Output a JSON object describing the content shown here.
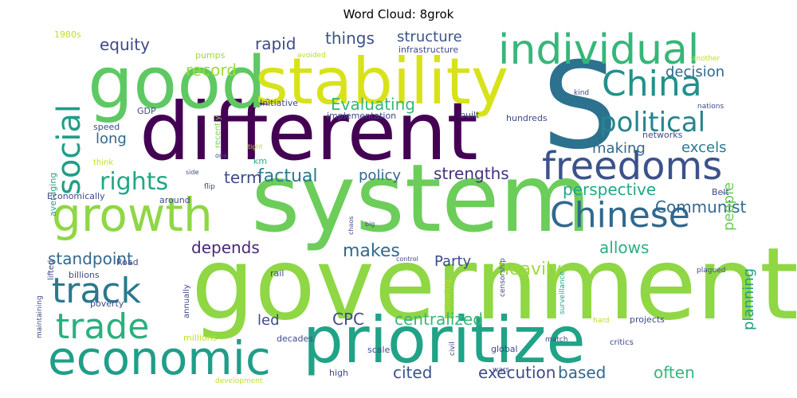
{
  "chart_data": {
    "type": "wordcloud",
    "title": "Word Cloud: 8grok",
    "words": [
      {
        "text": "government",
        "weight": 100,
        "color": "#8fd744"
      },
      {
        "text": "system",
        "weight": 96,
        "color": "#6ccd5a"
      },
      {
        "text": "different",
        "weight": 92,
        "color": "#440154"
      },
      {
        "text": "S",
        "weight": 90,
        "color": "#2c728e"
      },
      {
        "text": "good",
        "weight": 82,
        "color": "#5ec962"
      },
      {
        "text": "stability",
        "weight": 78,
        "color": "#d8e219"
      },
      {
        "text": "prioritize",
        "weight": 75,
        "color": "#20a386"
      },
      {
        "text": "growth",
        "weight": 64,
        "color": "#8fd744"
      },
      {
        "text": "economic",
        "weight": 62,
        "color": "#1f9e89"
      },
      {
        "text": "individual",
        "weight": 57,
        "color": "#35b779"
      },
      {
        "text": "freedoms",
        "weight": 52,
        "color": "#3b528b"
      },
      {
        "text": "China",
        "weight": 50,
        "color": "#21918c"
      },
      {
        "text": "Chinese",
        "weight": 50,
        "color": "#31688e"
      },
      {
        "text": "track",
        "weight": 48,
        "color": "#2a788e"
      },
      {
        "text": "trade",
        "weight": 48,
        "color": "#2ab07f"
      },
      {
        "text": "social",
        "weight": 44,
        "color": "#1f9e89"
      },
      {
        "text": "political",
        "weight": 38,
        "color": "#25848e"
      },
      {
        "text": "rights",
        "weight": 35,
        "color": "#22a785"
      },
      {
        "text": "centralized",
        "weight": 26,
        "color": "#35b779"
      },
      {
        "text": "equity",
        "weight": 24,
        "color": "#3e4a89"
      },
      {
        "text": "things",
        "weight": 24,
        "color": "#3b528b"
      },
      {
        "text": "structure",
        "weight": 22,
        "color": "#3b528b"
      },
      {
        "text": "record",
        "weight": 24,
        "color": "#a0da39"
      },
      {
        "text": "rapid",
        "weight": 24,
        "color": "#3e4a89"
      },
      {
        "text": "Evaluating",
        "weight": 24,
        "color": "#35b779"
      },
      {
        "text": "decision",
        "weight": 22,
        "color": "#31688e"
      },
      {
        "text": "long",
        "weight": 22,
        "color": "#31688e"
      },
      {
        "text": "making",
        "weight": 20,
        "color": "#31688e"
      },
      {
        "text": "excels",
        "weight": 20,
        "color": "#2a788e"
      },
      {
        "text": "factual",
        "weight": 24,
        "color": "#2a788e"
      },
      {
        "text": "term",
        "weight": 22,
        "color": "#3e4a89"
      },
      {
        "text": "policy",
        "weight": 20,
        "color": "#31688e"
      },
      {
        "text": "strengths",
        "weight": 22,
        "color": "#46327e"
      },
      {
        "text": "perspective",
        "weight": 22,
        "color": "#22a785"
      },
      {
        "text": "Communist",
        "weight": 22,
        "color": "#31688e"
      },
      {
        "text": "depends",
        "weight": 22,
        "color": "#482878"
      },
      {
        "text": "Party",
        "weight": 20,
        "color": "#3e4a89"
      },
      {
        "text": "heavily",
        "weight": 24,
        "color": "#a0da39"
      },
      {
        "text": "makes",
        "weight": 22,
        "color": "#31688e"
      },
      {
        "text": "allows",
        "weight": 22,
        "color": "#2ab07f"
      },
      {
        "text": "standpoint",
        "weight": 22,
        "color": "#31688e"
      },
      {
        "text": "people",
        "weight": 22,
        "color": "#6ccd5a"
      },
      {
        "text": "planning",
        "weight": 22,
        "color": "#1f9e89"
      },
      {
        "text": "CPC",
        "weight": 22,
        "color": "#3e4a89"
      },
      {
        "text": "led",
        "weight": 20,
        "color": "#3e4a89"
      },
      {
        "text": "cited",
        "weight": 22,
        "color": "#3b528b"
      },
      {
        "text": "execution",
        "weight": 22,
        "color": "#3e4a89"
      },
      {
        "text": "based",
        "weight": 22,
        "color": "#31688e"
      },
      {
        "text": "often",
        "weight": 22,
        "color": "#35b779"
      },
      {
        "text": "Initiative",
        "weight": 13,
        "color": "#3e4a89"
      },
      {
        "text": "implementation",
        "weight": 13,
        "color": "#3e4a89"
      },
      {
        "text": "built",
        "weight": 13,
        "color": "#3e4a89"
      },
      {
        "text": "hundreds",
        "weight": 13,
        "color": "#3e4a89"
      },
      {
        "text": "networks",
        "weight": 12,
        "color": "#3e4a89"
      },
      {
        "text": "infrastructure",
        "weight": 13,
        "color": "#3e4a89"
      },
      {
        "text": "pumps",
        "weight": 13,
        "color": "#a0da39"
      },
      {
        "text": "1980s",
        "weight": 12,
        "color": "#bddf26"
      },
      {
        "text": "avoided",
        "weight": 10,
        "color": "#b5de2b"
      },
      {
        "text": "another",
        "weight": 10,
        "color": "#bddf26"
      },
      {
        "text": "GDP",
        "weight": 12,
        "color": "#3e4a89"
      },
      {
        "text": "recently",
        "weight": 12,
        "color": "#7ad151"
      },
      {
        "text": "kind",
        "weight": 10,
        "color": "#3e4a89"
      },
      {
        "text": "nations",
        "weight": 10,
        "color": "#3e4a89"
      },
      {
        "text": "speed",
        "weight": 13,
        "color": "#3e4a89"
      },
      {
        "text": "think",
        "weight": 12,
        "color": "#bddf26"
      },
      {
        "text": "one",
        "weight": 10,
        "color": "#3e4a89"
      },
      {
        "text": "km",
        "weight": 12,
        "color": "#2ab07f"
      },
      {
        "text": "tight",
        "weight": 10,
        "color": "#bddf26"
      },
      {
        "text": "averaging",
        "weight": 12,
        "color": "#22a785"
      },
      {
        "text": "side",
        "weight": 10,
        "color": "#3e4a89"
      },
      {
        "text": "flip",
        "weight": 10,
        "color": "#3e4a89"
      },
      {
        "text": "around",
        "weight": 13,
        "color": "#3e4a89"
      },
      {
        "text": "Economically",
        "weight": 13,
        "color": "#3e4a89"
      },
      {
        "text": "Belt",
        "weight": 12,
        "color": "#3e4a89"
      },
      {
        "text": "lifted",
        "weight": 12,
        "color": "#3e4a89"
      },
      {
        "text": "chaos",
        "weight": 10,
        "color": "#3e4a89"
      },
      {
        "text": "big",
        "weight": 10,
        "color": "#3e4a89"
      },
      {
        "text": "Road",
        "weight": 12,
        "color": "#3e4a89"
      },
      {
        "text": "control",
        "weight": 10,
        "color": "#3e4a89"
      },
      {
        "text": "plagued",
        "weight": 10,
        "color": "#3e4a89"
      },
      {
        "text": "rail",
        "weight": 12,
        "color": "#3e4a89"
      },
      {
        "text": "billions",
        "weight": 13,
        "color": "#3e4a89"
      },
      {
        "text": "censorship",
        "weight": 10,
        "color": "#3e4a89"
      },
      {
        "text": "surveillance",
        "weight": 10,
        "color": "#22a785"
      },
      {
        "text": "slowing",
        "weight": 12,
        "color": "#bddf26"
      },
      {
        "text": "annually",
        "weight": 12,
        "color": "#3e4a89"
      },
      {
        "text": "poverty",
        "weight": 12,
        "color": "#3e4a89"
      },
      {
        "text": "maintaining",
        "weight": 10,
        "color": "#3e4a89"
      },
      {
        "text": "projects",
        "weight": 12,
        "color": "#3e4a89"
      },
      {
        "text": "hard",
        "weight": 10,
        "color": "#b5de2b"
      },
      {
        "text": "millions",
        "weight": 12,
        "color": "#bddf26"
      },
      {
        "text": "decades",
        "weight": 13,
        "color": "#3e4a89"
      },
      {
        "text": "civil",
        "weight": 10,
        "color": "#3e4a89"
      },
      {
        "text": "match",
        "weight": 10,
        "color": "#3e4a89"
      },
      {
        "text": "critics",
        "weight": 10,
        "color": "#3e4a89"
      },
      {
        "text": "scale",
        "weight": 12,
        "color": "#3e4a89"
      },
      {
        "text": "global",
        "weight": 12,
        "color": "#3e4a89"
      },
      {
        "text": "high",
        "weight": 12,
        "color": "#3e4a89"
      },
      {
        "text": "wars",
        "weight": 10,
        "color": "#3e4a89"
      },
      {
        "text": "development",
        "weight": 10,
        "color": "#bddf26"
      }
    ]
  }
}
